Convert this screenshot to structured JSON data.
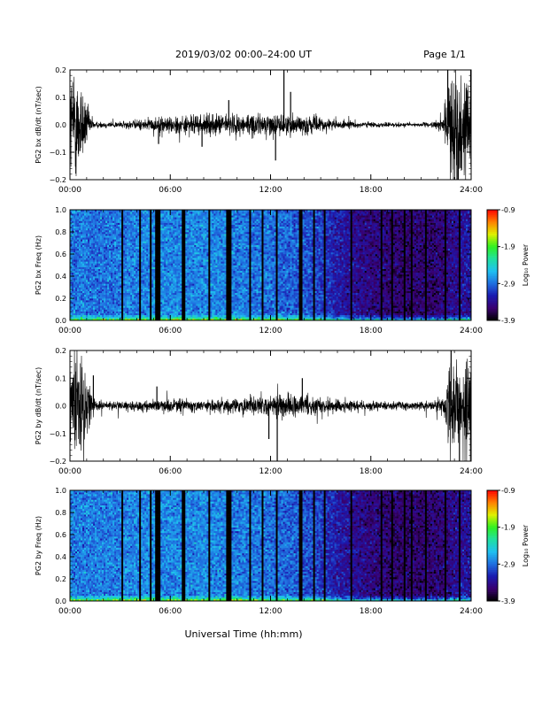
{
  "header": {
    "title": "2019/03/02  00:00–24:00 UT",
    "page": "Page 1/1"
  },
  "footer": {
    "xlabel": "Universal Time (hh:mm)"
  },
  "colors": {
    "trace": "#000000",
    "colormap": [
      "#000000",
      "#3a0070",
      "#1a1ab0",
      "#1f6fe0",
      "#1fc0f0",
      "#20e0a0",
      "#30f020",
      "#e0f000",
      "#ff8000",
      "#ff0000"
    ]
  },
  "chart_data": [
    {
      "id": "bx-time-series",
      "type": "line",
      "ylabel": "PG2 bx dB/dt (nT/sec)",
      "x_ticks": [
        "00:00",
        "06:00",
        "12:00",
        "18:00",
        "24:00"
      ],
      "xlim_hours": [
        0,
        24
      ],
      "ylim": [
        -0.2,
        0.2
      ],
      "y_ticks": [
        "0.2",
        "0.1",
        "0.0",
        "−0.1",
        "−0.2"
      ],
      "amplitude_profile": {
        "hours": [
          0.0,
          0.5,
          1.2,
          1.5,
          3.0,
          5.0,
          5.5,
          8.0,
          10.0,
          12.0,
          14.0,
          15.0,
          16.0,
          18.0,
          20.0,
          21.5,
          22.3,
          22.8,
          24.0
        ],
        "abs_amplitude": [
          0.25,
          0.25,
          0.05,
          0.015,
          0.015,
          0.03,
          0.04,
          0.045,
          0.05,
          0.05,
          0.045,
          0.035,
          0.02,
          0.012,
          0.01,
          0.01,
          0.03,
          0.25,
          0.25
        ]
      },
      "spikes": [
        {
          "hour": 5.3,
          "value": -0.07
        },
        {
          "hour": 7.9,
          "value": -0.08
        },
        {
          "hour": 9.5,
          "value": 0.09
        },
        {
          "hour": 12.3,
          "value": -0.13
        },
        {
          "hour": 12.8,
          "value": 0.2
        },
        {
          "hour": 13.2,
          "value": 0.12
        },
        {
          "hour": 22.6,
          "value": 0.2
        },
        {
          "hour": 23.2,
          "value": -0.2
        }
      ]
    },
    {
      "id": "bx-spectrogram",
      "type": "heatmap",
      "ylabel": "PG2 bx Freq (Hz)",
      "colorbar_label": "Log₁₀ Power",
      "x_ticks": [
        "00:00",
        "06:00",
        "12:00",
        "18:00",
        "24:00"
      ],
      "xlim_hours": [
        0,
        24
      ],
      "ylim": [
        0.0,
        1.0
      ],
      "y_ticks": [
        "1.0",
        "0.8",
        "0.6",
        "0.4",
        "0.2",
        "0.0"
      ],
      "color_range": [
        -3.9,
        -0.9
      ],
      "colorbar_ticks": [
        "-0.9",
        "-1.9",
        "-2.9",
        "-3.9"
      ],
      "background_level_profile": {
        "hours": [
          0,
          2,
          5,
          8,
          10,
          12,
          14,
          15,
          16,
          18,
          20,
          22,
          24
        ],
        "log_power": [
          -2.85,
          -2.9,
          -2.8,
          -2.8,
          -2.85,
          -2.9,
          -3.0,
          -3.1,
          -3.3,
          -3.5,
          -3.6,
          -3.55,
          -3.3
        ]
      },
      "gap_lines_hours": [
        3.1,
        4.2,
        4.8,
        5.2,
        5.35,
        6.8,
        8.3,
        9.45,
        9.6,
        10.8,
        11.5,
        12.4,
        13.8,
        14.6,
        15.2,
        16.8,
        18.6,
        19.3,
        20.0,
        20.4,
        21.3,
        22.5,
        23.3
      ]
    },
    {
      "id": "by-time-series",
      "type": "line",
      "ylabel": "PG2 by dB/dt (nT/sec)",
      "x_ticks": [
        "00:00",
        "06:00",
        "12:00",
        "18:00",
        "24:00"
      ],
      "xlim_hours": [
        0,
        24
      ],
      "ylim": [
        -0.2,
        0.2
      ],
      "y_ticks": [
        "0.2",
        "0.1",
        "0.0",
        "−0.1",
        "−0.2"
      ],
      "amplitude_profile": {
        "hours": [
          0.0,
          0.5,
          1.3,
          1.6,
          3.0,
          5.0,
          5.5,
          8.0,
          10.0,
          11.5,
          12.5,
          13.5,
          14.5,
          16.0,
          18.0,
          20.0,
          21.5,
          22.3,
          22.8,
          24.0
        ],
        "abs_amplitude": [
          0.25,
          0.25,
          0.06,
          0.02,
          0.02,
          0.025,
          0.03,
          0.03,
          0.035,
          0.045,
          0.055,
          0.05,
          0.04,
          0.03,
          0.02,
          0.02,
          0.02,
          0.04,
          0.2,
          0.2
        ]
      },
      "spikes": [
        {
          "hour": 1.4,
          "value": 0.11
        },
        {
          "hour": 5.2,
          "value": 0.07
        },
        {
          "hour": 11.9,
          "value": -0.12
        },
        {
          "hour": 12.4,
          "value": -0.2
        },
        {
          "hour": 13.9,
          "value": 0.1
        },
        {
          "hour": 22.8,
          "value": 0.2
        },
        {
          "hour": 23.3,
          "value": -0.2
        }
      ]
    },
    {
      "id": "by-spectrogram",
      "type": "heatmap",
      "ylabel": "PG2 by Freq (Hz)",
      "colorbar_label": "Log₁₀ Power",
      "x_ticks": [
        "00:00",
        "06:00",
        "12:00",
        "18:00",
        "24:00"
      ],
      "xlim_hours": [
        0,
        24
      ],
      "ylim": [
        0.0,
        1.0
      ],
      "y_ticks": [
        "1.0",
        "0.8",
        "0.6",
        "0.4",
        "0.2",
        "0.0"
      ],
      "color_range": [
        -3.9,
        -0.9
      ],
      "colorbar_ticks": [
        "-0.9",
        "-1.9",
        "-2.9",
        "-3.9"
      ],
      "background_level_profile": {
        "hours": [
          0,
          2,
          5,
          8,
          10,
          12,
          14,
          15,
          16,
          18,
          20,
          22,
          24
        ],
        "log_power": [
          -2.85,
          -2.85,
          -2.8,
          -2.8,
          -2.85,
          -2.9,
          -3.0,
          -3.1,
          -3.3,
          -3.5,
          -3.6,
          -3.55,
          -3.3
        ]
      },
      "gap_lines_hours": [
        3.1,
        4.2,
        4.8,
        5.2,
        5.35,
        6.8,
        8.3,
        9.45,
        9.6,
        10.8,
        11.5,
        12.4,
        13.8,
        14.6,
        15.2,
        16.8,
        18.6,
        19.3,
        20.0,
        20.4,
        21.3,
        22.5,
        23.3
      ]
    }
  ]
}
